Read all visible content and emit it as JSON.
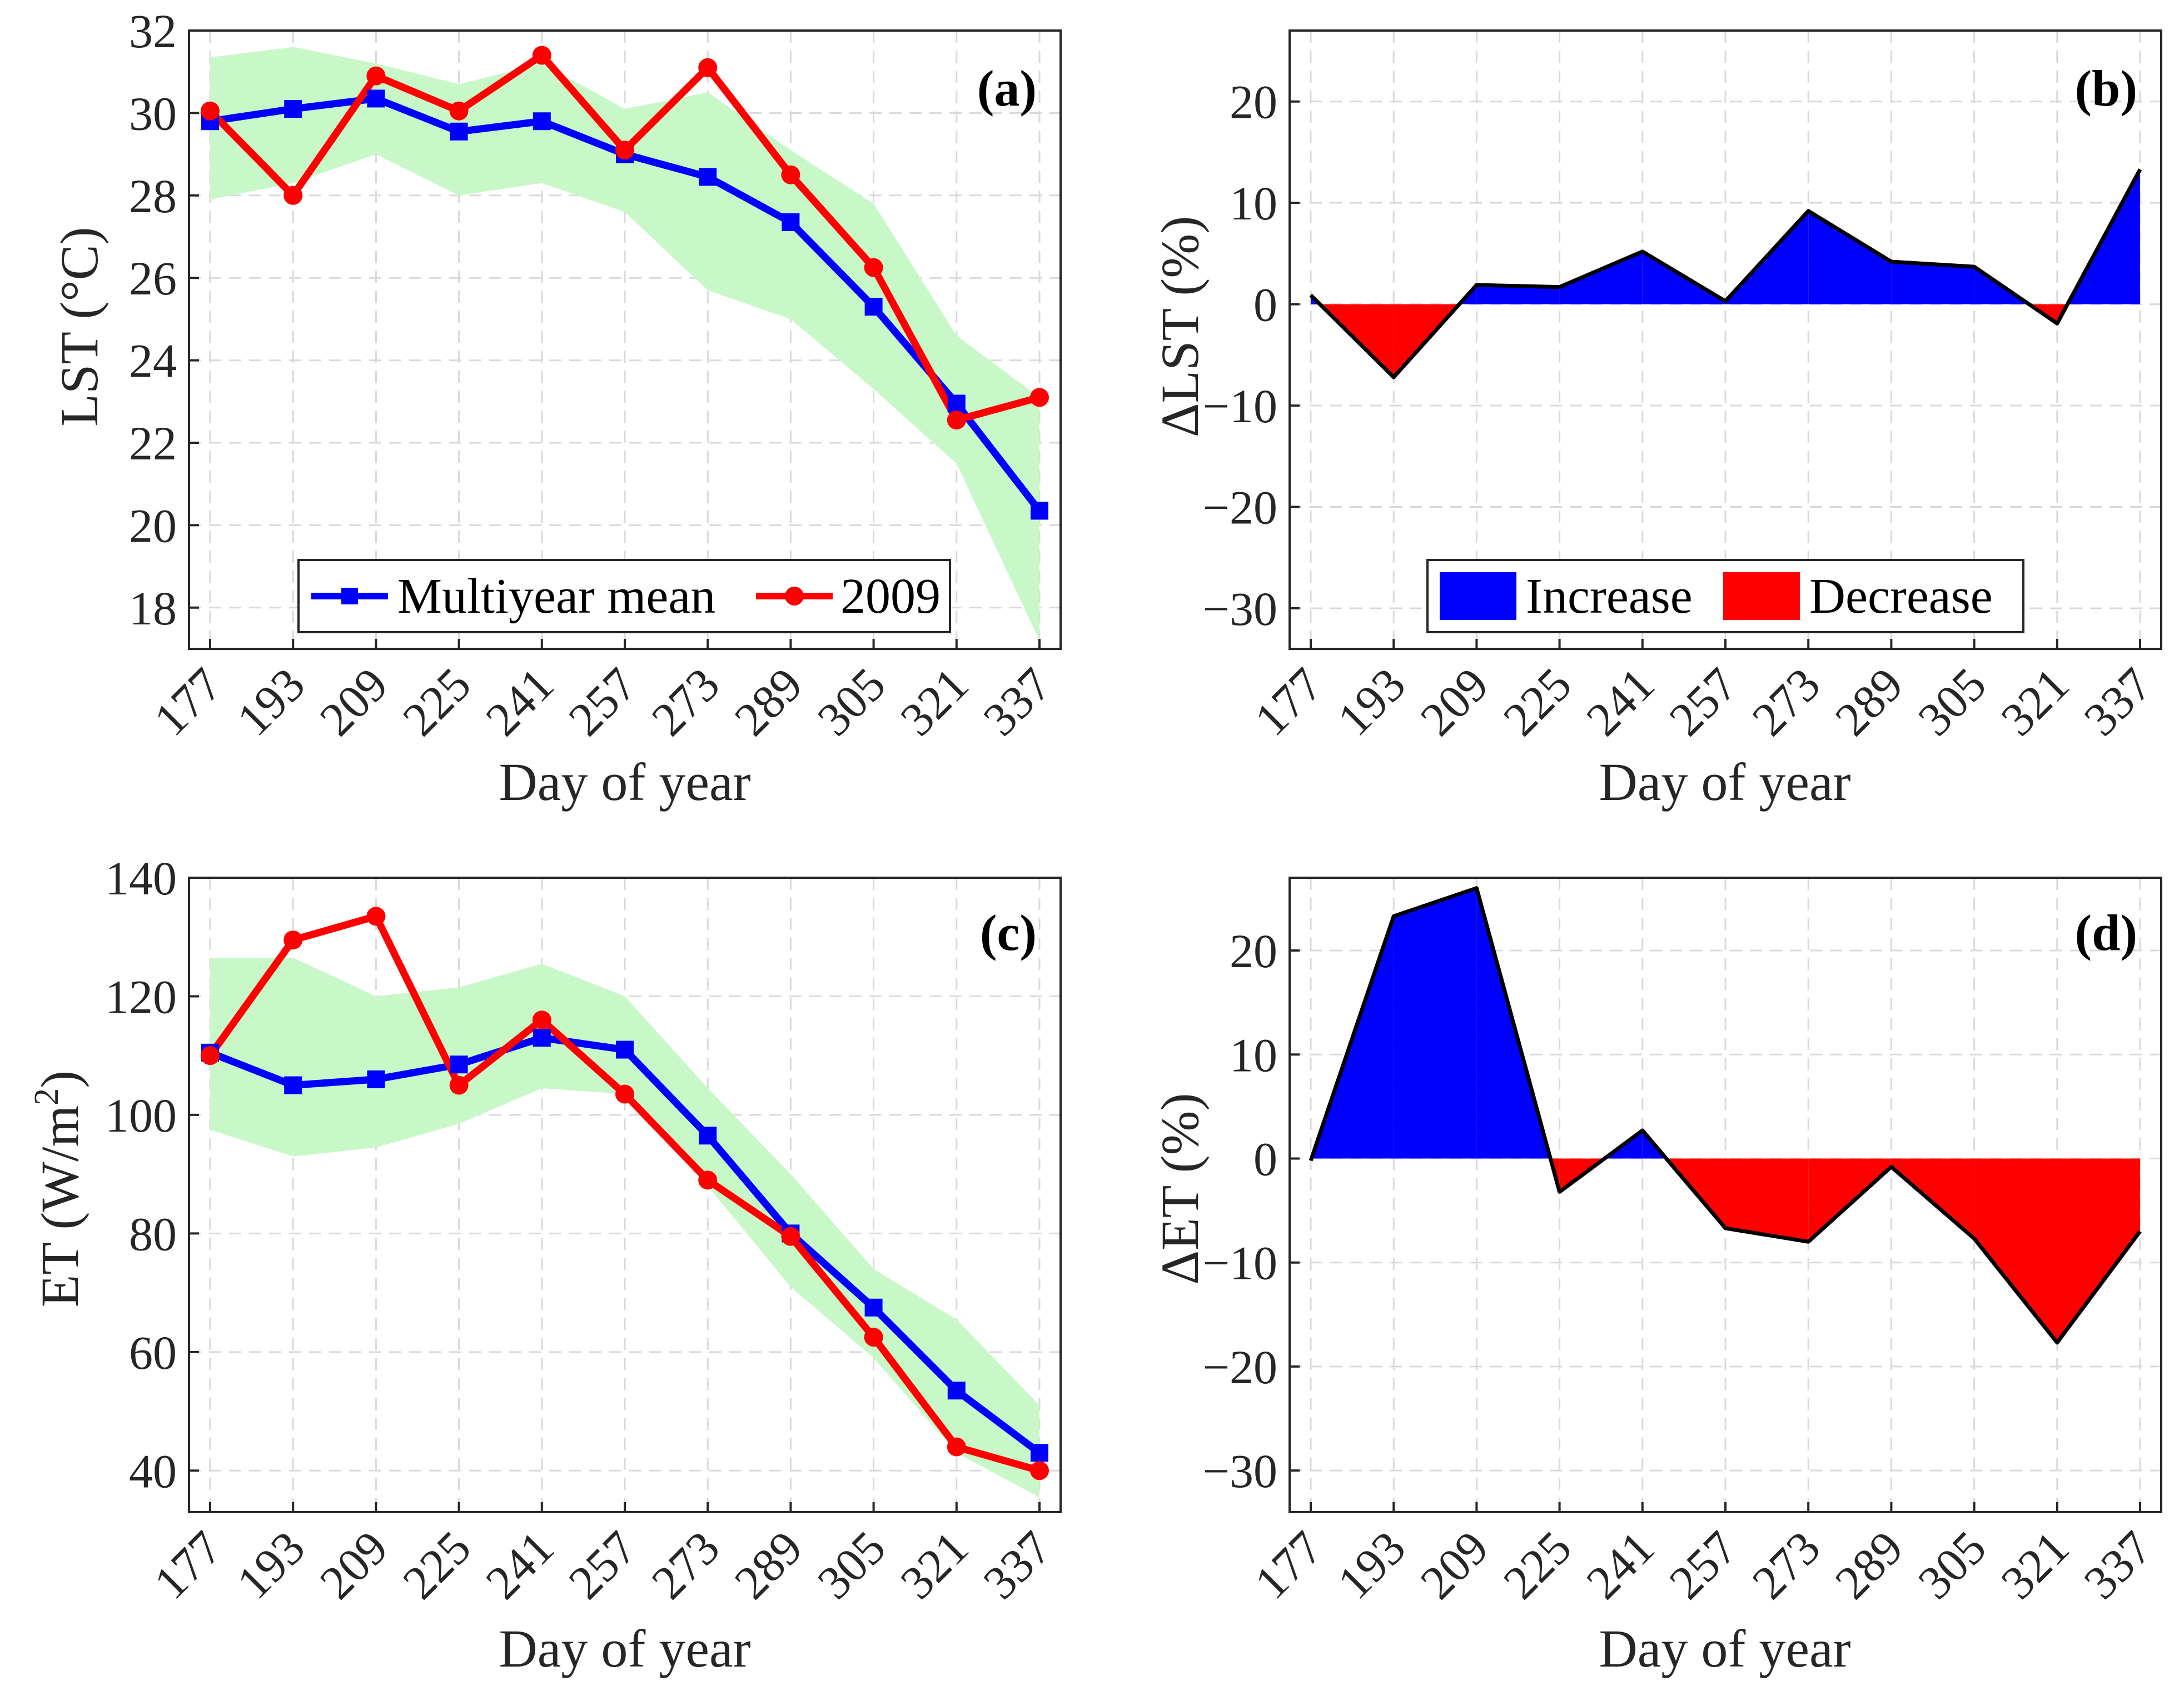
{
  "figure": {
    "x_categories": [
      "177",
      "193",
      "209",
      "225",
      "241",
      "257",
      "273",
      "289",
      "305",
      "321",
      "337"
    ],
    "x_title": "Day of year",
    "colors": {
      "multiyear": "#0000ff",
      "year2009": "#ff0000",
      "band": "#c8f7c8",
      "increase": "#0000ff",
      "decrease": "#ff0000",
      "grid": "#d9d9d9",
      "axis": "#262626"
    }
  },
  "chart_data": [
    {
      "id": "a",
      "type": "line",
      "panel_label": "(a)",
      "title": "",
      "xlabel": "Day of year",
      "ylabel": "LST (°C)",
      "categories": [
        "177",
        "193",
        "209",
        "225",
        "241",
        "257",
        "273",
        "289",
        "305",
        "321",
        "337"
      ],
      "ylim": [
        17,
        32
      ],
      "yticks": [
        18,
        20,
        22,
        24,
        26,
        28,
        30,
        32
      ],
      "yticklabels": [
        "18",
        "20",
        "22",
        "24",
        "26",
        "28",
        "30",
        "32"
      ],
      "band": {
        "upper": [
          31.35,
          31.6,
          31.2,
          30.7,
          31.2,
          30.1,
          30.5,
          29.1,
          27.8,
          24.6,
          23.1
        ],
        "lower": [
          27.9,
          28.3,
          29.0,
          28.0,
          28.3,
          27.6,
          25.7,
          25.0,
          23.3,
          21.5,
          17.2
        ]
      },
      "series": [
        {
          "name": "Multiyear mean",
          "marker": "square",
          "values": [
            29.8,
            30.1,
            30.35,
            29.55,
            29.8,
            29.0,
            28.45,
            27.35,
            25.3,
            22.95,
            20.35
          ]
        },
        {
          "name": "2009",
          "marker": "circle",
          "values": [
            30.05,
            28.0,
            30.9,
            30.05,
            31.4,
            29.1,
            31.1,
            28.5,
            26.25,
            22.55,
            23.1
          ]
        }
      ],
      "legend": {
        "placement": "bottom-center",
        "entries": [
          "Multiyear mean",
          "2009"
        ]
      },
      "grid": true
    },
    {
      "id": "b",
      "type": "area",
      "panel_label": "(b)",
      "title": "",
      "xlabel": "Day of year",
      "ylabel": "ΔLST (%)",
      "categories": [
        "177",
        "193",
        "209",
        "225",
        "241",
        "257",
        "273",
        "289",
        "305",
        "321",
        "337"
      ],
      "ylim": [
        -34,
        27
      ],
      "yticks": [
        -30,
        -20,
        -10,
        0,
        10,
        20
      ],
      "yticklabels": [
        "−30",
        "−20",
        "−10",
        "0",
        "10",
        "20"
      ],
      "values": [
        0.9,
        -7.2,
        1.9,
        1.7,
        5.2,
        0.3,
        9.2,
        4.2,
        3.7,
        -1.9,
        13.3
      ],
      "legend": {
        "placement": "bottom-center",
        "entries": [
          "Increase",
          "Decrease"
        ]
      },
      "grid": true
    },
    {
      "id": "c",
      "type": "line",
      "panel_label": "(c)",
      "title": "",
      "xlabel": "Day of year",
      "ylabel": "ET (W/m",
      "ylabel_sup": "2",
      "ylabel_end": ")",
      "categories": [
        "177",
        "193",
        "209",
        "225",
        "241",
        "257",
        "273",
        "289",
        "305",
        "321",
        "337"
      ],
      "ylim": [
        33,
        140
      ],
      "yticks": [
        40,
        60,
        80,
        100,
        120,
        140
      ],
      "yticklabels": [
        "40",
        "60",
        "80",
        "100",
        "120",
        "140"
      ],
      "band": {
        "upper": [
          126.5,
          126.5,
          120.0,
          121.5,
          125.5,
          120.0,
          104.5,
          90.0,
          74.0,
          65.5,
          51.0
        ],
        "lower": [
          97.5,
          93.0,
          94.5,
          98.5,
          104.5,
          103.5,
          88.0,
          71.0,
          59.0,
          43.0,
          35.5
        ]
      },
      "series": [
        {
          "name": "Multiyear mean",
          "marker": "square",
          "values": [
            110.5,
            105.0,
            106.0,
            108.5,
            113.0,
            111.0,
            96.5,
            80.0,
            67.5,
            53.5,
            43.0
          ]
        },
        {
          "name": "2009",
          "marker": "circle",
          "values": [
            110.0,
            129.5,
            133.5,
            105.0,
            116.0,
            103.5,
            89.0,
            79.5,
            62.5,
            44.0,
            40.0
          ]
        }
      ],
      "grid": true
    },
    {
      "id": "d",
      "type": "area",
      "panel_label": "(d)",
      "title": "",
      "xlabel": "Day of year",
      "ylabel": "ΔET (%)",
      "categories": [
        "177",
        "193",
        "209",
        "225",
        "241",
        "257",
        "273",
        "289",
        "305",
        "321",
        "337"
      ],
      "ylim": [
        -34,
        27
      ],
      "yticks": [
        -30,
        -20,
        -10,
        0,
        10,
        20
      ],
      "yticklabels": [
        "−30",
        "−20",
        "−10",
        "0",
        "10",
        "20"
      ],
      "values": [
        -0.2,
        23.3,
        26.0,
        -3.2,
        2.7,
        -6.7,
        -8.0,
        -0.8,
        -7.7,
        -17.7,
        -7.0
      ],
      "grid": true
    }
  ]
}
